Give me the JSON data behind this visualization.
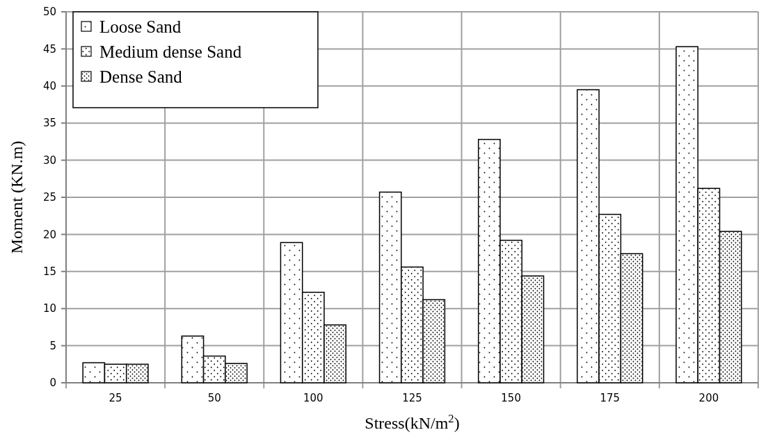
{
  "chart_data": {
    "type": "bar",
    "xlabel": "Stress(kN/m$^{2}$)",
    "ylabel": "Moment (KN.m)",
    "categories": [
      "25",
      "50",
      "100",
      "125",
      "150",
      "175",
      "200"
    ],
    "series": [
      {
        "name": "Loose  Sand",
        "color": "#ffffff",
        "values": [
          2.7,
          6.3,
          18.9,
          25.7,
          32.8,
          39.5,
          45.3
        ]
      },
      {
        "name": "Medium dense Sand",
        "color": "#ffffff",
        "values": [
          2.5,
          3.6,
          12.2,
          15.6,
          19.2,
          22.7,
          26.2
        ]
      },
      {
        "name": "Dense  Sand",
        "color": "#ffffff",
        "values": [
          2.5,
          2.6,
          7.8,
          11.2,
          14.4,
          17.4,
          20.4
        ]
      }
    ],
    "ylim": [
      0,
      50
    ],
    "yticks": [
      0,
      5,
      10,
      15,
      20,
      25,
      30,
      35,
      40,
      45,
      50
    ],
    "grid": true,
    "legend": "top left"
  }
}
